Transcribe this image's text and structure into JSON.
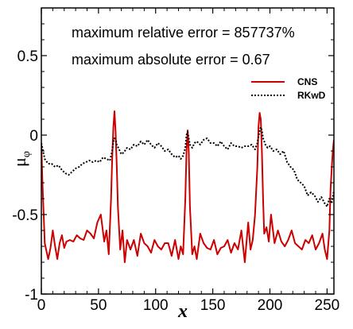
{
  "chart_data": {
    "type": "line",
    "xlabel": "x",
    "ylabel": "μ",
    "ylabel_subscript": "φ",
    "xlim": [
      0,
      256
    ],
    "ylim": [
      -1,
      0.8
    ],
    "xticks": [
      0,
      50,
      100,
      150,
      200,
      250
    ],
    "yticks": [
      -1,
      -0.5,
      0,
      0.5
    ],
    "ytick_labels": [
      "-1",
      "-0.5",
      "0",
      "0.5"
    ],
    "grid": false,
    "legend_position": "upper-right",
    "colors": {
      "CNS": "#cc0000",
      "RKwD": "#000000"
    },
    "annotations": [
      "maximum relative error = 857737%",
      "maximum absolute error = 0.67"
    ],
    "series": [
      {
        "name": "CNS",
        "style": "solid",
        "x": [
          0,
          1,
          3,
          6,
          8,
          10,
          12,
          14,
          16,
          18,
          20,
          22,
          25,
          28,
          31,
          34,
          37,
          40,
          43,
          46,
          49,
          52,
          55,
          57,
          59,
          61,
          62,
          63,
          64,
          65,
          66,
          67,
          69,
          71,
          73,
          75,
          78,
          81,
          84,
          87,
          90,
          93,
          96,
          99,
          102,
          105,
          108,
          111,
          114,
          117,
          120,
          122,
          124,
          126,
          127,
          128,
          129,
          130,
          132,
          134,
          136,
          139,
          142,
          145,
          148,
          151,
          154,
          157,
          160,
          163,
          166,
          169,
          172,
          175,
          178,
          181,
          183,
          185,
          187,
          189,
          190,
          191,
          192,
          193,
          194,
          195,
          197,
          199,
          201,
          204,
          207,
          210,
          213,
          216,
          219,
          222,
          225,
          228,
          231,
          234,
          237,
          240,
          243,
          246,
          248,
          250,
          252,
          253,
          254,
          255,
          256
        ],
        "y": [
          -0.05,
          -0.3,
          -0.68,
          -0.78,
          -0.71,
          -0.6,
          -0.7,
          -0.78,
          -0.68,
          -0.63,
          -0.71,
          -0.67,
          -0.66,
          -0.67,
          -0.63,
          -0.65,
          -0.66,
          -0.6,
          -0.62,
          -0.65,
          -0.55,
          -0.5,
          -0.67,
          -0.6,
          -0.75,
          -0.4,
          -0.15,
          0.05,
          0.15,
          0.02,
          -0.2,
          -0.45,
          -0.72,
          -0.6,
          -0.8,
          -0.66,
          -0.72,
          -0.66,
          -0.76,
          -0.62,
          -0.68,
          -0.7,
          -0.74,
          -0.66,
          -0.7,
          -0.72,
          -0.68,
          -0.68,
          -0.76,
          -0.66,
          -0.78,
          -0.7,
          -0.75,
          -0.4,
          -0.1,
          0.03,
          -0.1,
          -0.45,
          -0.75,
          -0.7,
          -0.78,
          -0.62,
          -0.68,
          -0.71,
          -0.72,
          -0.66,
          -0.75,
          -0.71,
          -0.7,
          -0.66,
          -0.74,
          -0.68,
          -0.72,
          -0.6,
          -0.8,
          -0.55,
          -0.72,
          -0.66,
          -0.5,
          -0.2,
          0.05,
          0.14,
          0.1,
          -0.1,
          -0.4,
          -0.62,
          -0.58,
          -0.67,
          -0.5,
          -0.68,
          -0.6,
          -0.67,
          -0.7,
          -0.66,
          -0.6,
          -0.68,
          -0.7,
          -0.72,
          -0.66,
          -0.68,
          -0.63,
          -0.72,
          -0.68,
          -0.62,
          -0.72,
          -0.78,
          -0.6,
          -0.35,
          -0.22,
          -0.1,
          -0.03
        ]
      },
      {
        "name": "RKwD",
        "style": "dotted",
        "x": [
          0,
          3,
          6,
          9,
          12,
          15,
          18,
          21,
          24,
          27,
          30,
          33,
          36,
          39,
          42,
          45,
          48,
          51,
          54,
          57,
          60,
          62,
          63,
          64,
          65,
          66,
          68,
          70,
          72,
          75,
          78,
          81,
          84,
          87,
          90,
          93,
          96,
          99,
          102,
          105,
          108,
          111,
          114,
          117,
          120,
          122,
          124,
          126,
          127,
          128,
          129,
          130,
          132,
          134,
          136,
          139,
          142,
          145,
          148,
          151,
          154,
          157,
          160,
          163,
          166,
          169,
          172,
          175,
          178,
          181,
          184,
          187,
          189,
          190,
          191,
          192,
          193,
          194,
          196,
          198,
          200,
          203,
          206,
          209,
          212,
          215,
          218,
          221,
          224,
          227,
          230,
          233,
          236,
          239,
          242,
          245,
          248,
          250,
          252,
          254,
          256
        ],
        "y": [
          -0.05,
          -0.15,
          -0.18,
          -0.18,
          -0.2,
          -0.19,
          -0.22,
          -0.24,
          -0.25,
          -0.23,
          -0.21,
          -0.2,
          -0.18,
          -0.17,
          -0.16,
          -0.17,
          -0.16,
          -0.17,
          -0.14,
          -0.15,
          -0.16,
          -0.1,
          -0.04,
          -0.02,
          -0.03,
          -0.06,
          -0.09,
          -0.12,
          -0.11,
          -0.08,
          -0.09,
          -0.06,
          -0.07,
          -0.04,
          -0.06,
          -0.03,
          -0.06,
          -0.08,
          -0.05,
          -0.07,
          -0.1,
          -0.09,
          -0.12,
          -0.14,
          -0.13,
          -0.15,
          -0.13,
          -0.08,
          0.0,
          0.02,
          -0.02,
          -0.06,
          -0.08,
          -0.05,
          -0.04,
          -0.06,
          -0.03,
          -0.02,
          -0.05,
          -0.05,
          -0.07,
          -0.04,
          -0.07,
          -0.09,
          -0.05,
          -0.07,
          -0.07,
          -0.08,
          -0.07,
          -0.07,
          -0.06,
          -0.09,
          -0.05,
          -0.01,
          0.03,
          0.05,
          0.03,
          -0.02,
          -0.06,
          -0.08,
          -0.07,
          -0.1,
          -0.09,
          -0.12,
          -0.1,
          -0.17,
          -0.2,
          -0.22,
          -0.28,
          -0.3,
          -0.32,
          -0.38,
          -0.36,
          -0.38,
          -0.42,
          -0.39,
          -0.43,
          -0.45,
          -0.4,
          -0.43,
          -0.35
        ]
      }
    ]
  }
}
